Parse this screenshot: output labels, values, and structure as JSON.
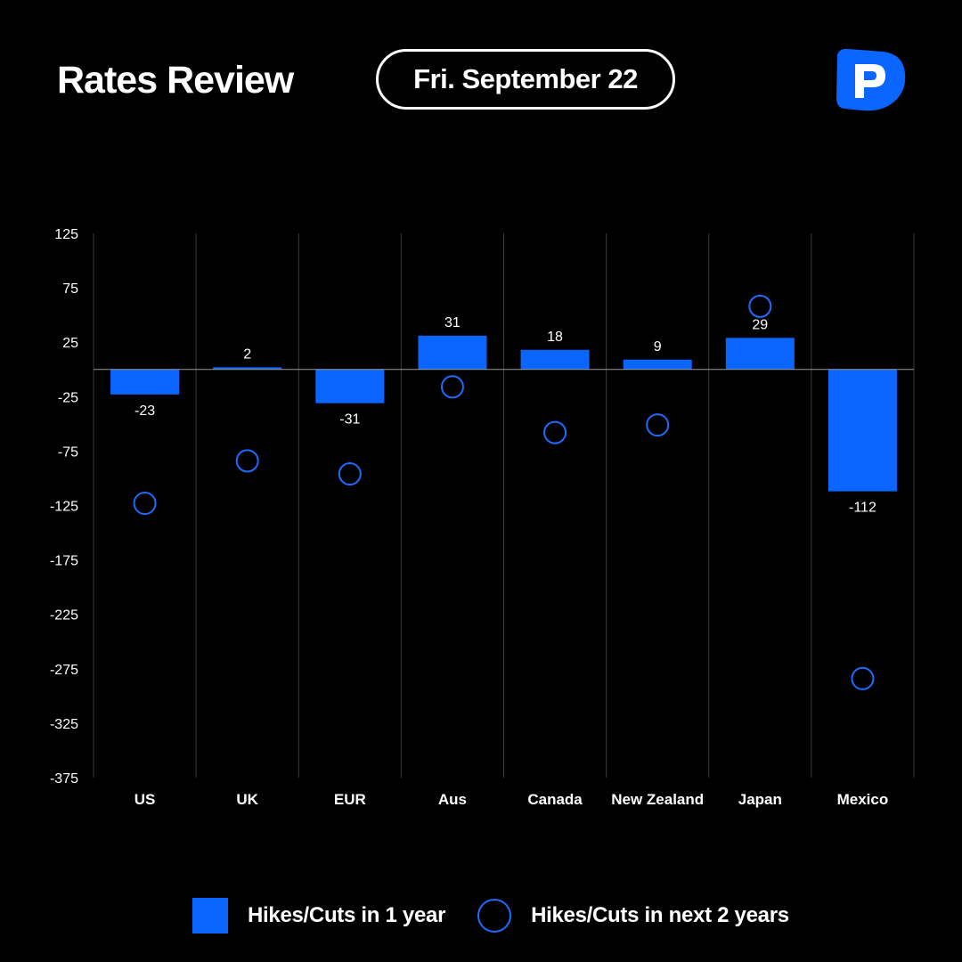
{
  "header": {
    "title": "Rates Review",
    "date": "Fri. September 22"
  },
  "colors": {
    "background": "#000000",
    "bar": "#0a66ff",
    "marker": "#1f6bff",
    "text": "#ffffff",
    "grid": "#3a3a3a",
    "logo": "#0a66ff"
  },
  "logo": {
    "icon": "pepperstone-p-logo-icon"
  },
  "legend": {
    "bar_label": "Hikes/Cuts in 1 year",
    "marker_label": "Hikes/Cuts in next 2 years"
  },
  "chart_data": {
    "type": "bar",
    "categories": [
      "US",
      "UK",
      "EUR",
      "Aus",
      "Canada",
      "New Zealand",
      "Japan",
      "Mexico"
    ],
    "series": [
      {
        "name": "Hikes/Cuts in 1 year",
        "kind": "bar",
        "values": [
          -23,
          2,
          -31,
          31,
          18,
          9,
          29,
          -112
        ],
        "labels": [
          "-23",
          "2",
          "-31",
          "31",
          "18",
          "9",
          "29",
          "-112"
        ]
      },
      {
        "name": "Hikes/Cuts in next 2 years",
        "kind": "marker",
        "values": [
          -123,
          -84,
          -96,
          -16,
          -58,
          -51,
          58,
          -284
        ]
      }
    ],
    "yticks": [
      125,
      75,
      25,
      -25,
      -75,
      -125,
      -175,
      -225,
      -275,
      -325,
      -375
    ],
    "ytick_labels": [
      "125",
      "75",
      "25",
      "-25",
      "-75",
      "-125",
      "-175",
      "-225",
      "-275",
      "-325",
      "-375"
    ],
    "ylim": [
      -375,
      125
    ],
    "zero_line": true,
    "grid": "vertical",
    "legend_position": "bottom"
  }
}
